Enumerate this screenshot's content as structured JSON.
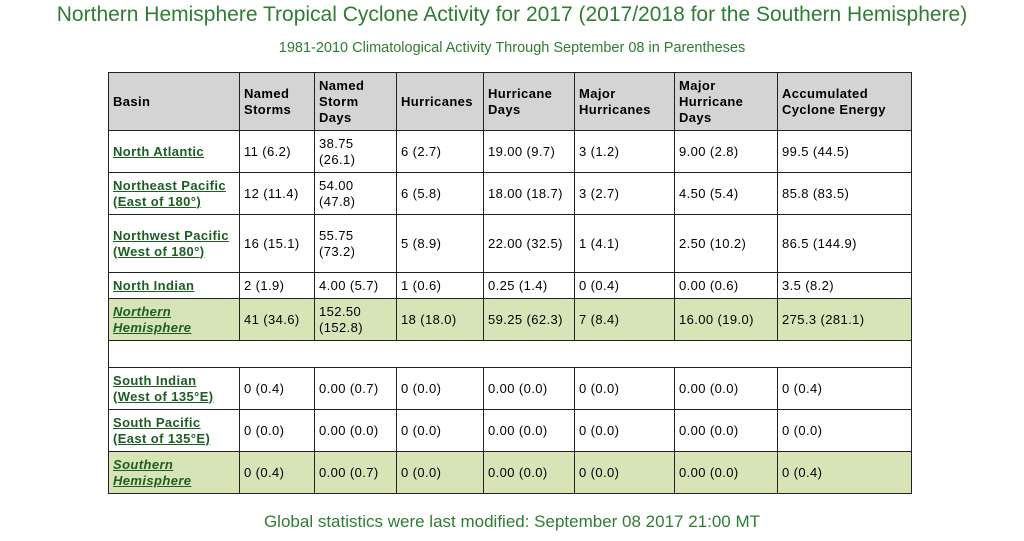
{
  "title": "Northern Hemisphere Tropical Cyclone Activity for 2017 (2017/2018 for the Southern Hemisphere)",
  "subtitle": "1981-2010 Climatological Activity Through September 08 in Parentheses",
  "headers": [
    "Basin",
    "Named Storms",
    "Named Storm Days",
    "Hurricanes",
    "Hurricane Days",
    "Major Hurricanes",
    "Major Hurricane Days",
    "Accumulated Cyclone Energy"
  ],
  "northern_rows": [
    {
      "basin": "North Atlantic",
      "named_storms": "11 (6.2)",
      "named_storm_days": "38.75 (26.1)",
      "hurricanes": "6 (2.7)",
      "hurricane_days": "19.00 (9.7)",
      "major_hurricanes": "3 (1.2)",
      "major_hurricane_days": "9.00 (2.8)",
      "ace": "99.5 (44.5)"
    },
    {
      "basin": "Northeast Pacific (East of 180°)",
      "named_storms": "12 (11.4)",
      "named_storm_days": "54.00 (47.8)",
      "hurricanes": "6 (5.8)",
      "hurricane_days": "18.00 (18.7)",
      "major_hurricanes": "3 (2.7)",
      "major_hurricane_days": "4.50 (5.4)",
      "ace": "85.8 (83.5)"
    },
    {
      "basin": "Northwest Pacific (West of 180°)",
      "named_storms": "16 (15.1)",
      "named_storm_days": "55.75 (73.2)",
      "hurricanes": "5 (8.9)",
      "hurricane_days": "22.00 (32.5)",
      "major_hurricanes": "1 (4.1)",
      "major_hurricane_days": "2.50 (10.2)",
      "ace": "86.5 (144.9)"
    },
    {
      "basin": "North Indian",
      "named_storms": "2 (1.9)",
      "named_storm_days": "4.00 (5.7)",
      "hurricanes": "1 (0.6)",
      "hurricane_days": "0.25 (1.4)",
      "major_hurricanes": "0 (0.4)",
      "major_hurricane_days": "0.00 (0.6)",
      "ace": "3.5 (8.2)"
    }
  ],
  "northern_total": {
    "basin": "Northern Hemisphere",
    "named_storms": "41 (34.6)",
    "named_storm_days": "152.50 (152.8)",
    "hurricanes": "18 (18.0)",
    "hurricane_days": "59.25 (62.3)",
    "major_hurricanes": "7 (8.4)",
    "major_hurricane_days": "16.00 (19.0)",
    "ace": "275.3 (281.1)"
  },
  "southern_rows": [
    {
      "basin": "South Indian (West of 135°E)",
      "named_storms": "0 (0.4)",
      "named_storm_days": "0.00 (0.7)",
      "hurricanes": "0 (0.0)",
      "hurricane_days": "0.00 (0.0)",
      "major_hurricanes": "0 (0.0)",
      "major_hurricane_days": "0.00 (0.0)",
      "ace": "0 (0.4)"
    },
    {
      "basin": "South Pacific (East of 135°E)",
      "named_storms": "0 (0.0)",
      "named_storm_days": "0.00 (0.0)",
      "hurricanes": "0 (0.0)",
      "hurricane_days": "0.00 (0.0)",
      "major_hurricanes": "0 (0.0)",
      "major_hurricane_days": "0.00 (0.0)",
      "ace": "0 (0.0)"
    }
  ],
  "southern_total": {
    "basin": "Southern Hemisphere",
    "named_storms": "0 (0.4)",
    "named_storm_days": "0.00 (0.7)",
    "hurricanes": "0 (0.0)",
    "hurricane_days": "0.00 (0.0)",
    "major_hurricanes": "0 (0.0)",
    "major_hurricane_days": "0.00 (0.0)",
    "ace": "0 (0.4)"
  },
  "footer": "Global statistics were last modified: September 08 2017 21:00 MT",
  "colors": {
    "title_green": "#2e7d32",
    "link_green": "#1b5e20",
    "header_gray": "#d4d4d4",
    "hemisphere_row": "#d7e4b8"
  }
}
